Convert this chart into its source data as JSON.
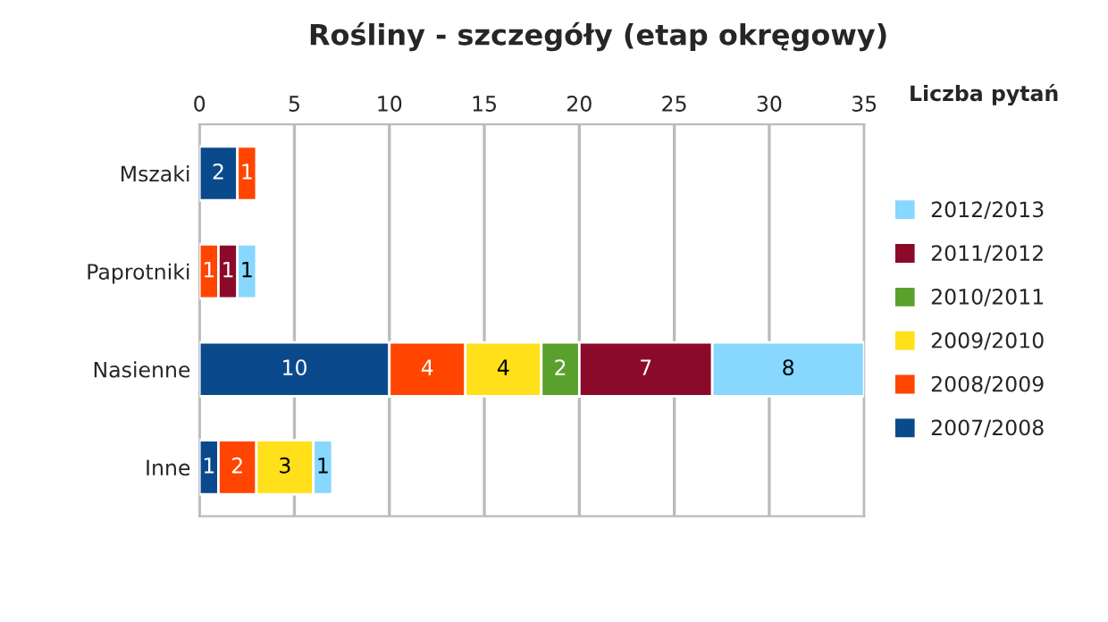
{
  "chart_data": {
    "type": "bar",
    "orientation": "horizontal",
    "stacked": true,
    "title": "Rośliny - szczegóły (etap okręgowy)",
    "xlabel": "Liczba pytań",
    "categories": [
      "Mszaki",
      "Paprotniki",
      "Nasienne",
      "Inne"
    ],
    "series": [
      {
        "name": "2007/2008",
        "color": "#0a4a8c",
        "values": [
          2,
          null,
          10,
          1
        ]
      },
      {
        "name": "2008/2009",
        "color": "#ff4500",
        "values": [
          1,
          1,
          4,
          2
        ]
      },
      {
        "name": "2009/2010",
        "color": "#ffe01a",
        "values": [
          null,
          null,
          4,
          3
        ]
      },
      {
        "name": "2010/2011",
        "color": "#5aa02c",
        "values": [
          null,
          null,
          2,
          null
        ]
      },
      {
        "name": "2011/2012",
        "color": "#8b0a2a",
        "values": [
          null,
          1,
          7,
          null
        ]
      },
      {
        "name": "2012/2013",
        "color": "#87d7ff",
        "values": [
          null,
          1,
          8,
          1
        ]
      }
    ],
    "xlim": [
      0,
      35
    ],
    "xticks": [
      0,
      5,
      10,
      15,
      20,
      25,
      30,
      35
    ],
    "grid": "x",
    "legend": "right",
    "data_labels": true
  }
}
